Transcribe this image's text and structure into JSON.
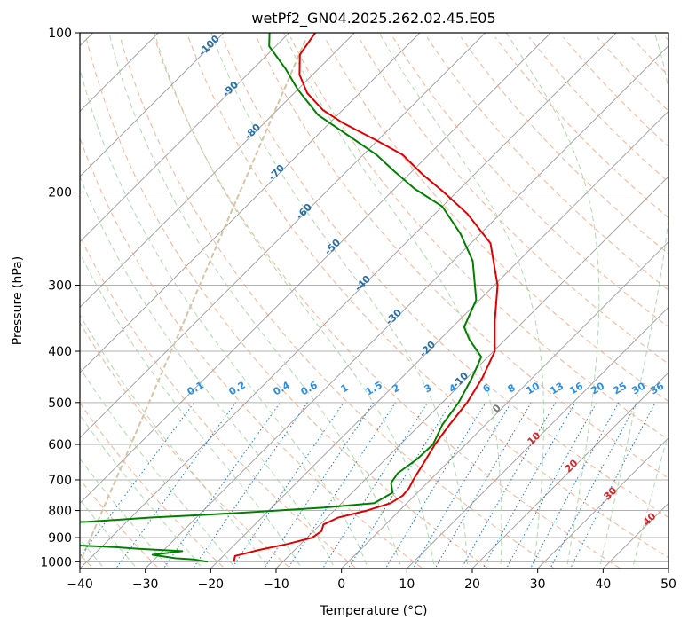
{
  "chart_data": {
    "type": "skew-t log-p",
    "title": "wetPf2_GN04.2025.262.02.45.E05",
    "xlabel": "Temperature (°C)",
    "ylabel": "Pressure (hPa)",
    "xlim": [
      -40,
      50
    ],
    "ylim_hpa": [
      1030,
      100
    ],
    "y_scale": "log",
    "grid": true,
    "x_ticks": [
      -40,
      -30,
      -20,
      -10,
      0,
      10,
      20,
      30,
      40,
      50
    ],
    "x_tick_labels": [
      "−40",
      "−30",
      "−20",
      "−10",
      "0",
      "10",
      "20",
      "30",
      "40",
      "50"
    ],
    "y_ticks": [
      100,
      200,
      300,
      400,
      500,
      600,
      700,
      800,
      900,
      1000
    ],
    "y_tick_labels": [
      "100",
      "200",
      "300",
      "400",
      "500",
      "600",
      "700",
      "800",
      "900",
      "1000"
    ],
    "colors": {
      "temperature": "#e00000",
      "dewpoint": "#008000",
      "isotherm": "#999999",
      "dry_adiabat": "#f4a582",
      "moist_adiabat": "#9fd49f",
      "mixing_ratio": "#1f77d4",
      "mixing_ratio_label": "#2b8fe8",
      "dry_adiabat_label": "#d62728",
      "moist_adiabat_label": "#2a6fa8",
      "ice_curve": "#d8c3a5"
    },
    "series": [
      {
        "key": "temperature",
        "points": [
          [
            -17.5,
            1000
          ],
          [
            -18.2,
            975
          ],
          [
            -15.5,
            950
          ],
          [
            -12,
            925
          ],
          [
            -9.2,
            900
          ],
          [
            -8.8,
            875
          ],
          [
            -9.5,
            850
          ],
          [
            -8.3,
            825
          ],
          [
            -5,
            800
          ],
          [
            -2.5,
            775
          ],
          [
            -1.8,
            750
          ],
          [
            -2,
            725
          ],
          [
            -2.6,
            700
          ],
          [
            -3.6,
            650
          ],
          [
            -4.7,
            600
          ],
          [
            -5.5,
            550
          ],
          [
            -6.2,
            500
          ],
          [
            -7.6,
            450
          ],
          [
            -9.8,
            400
          ],
          [
            -14.5,
            350
          ],
          [
            -19.5,
            300
          ],
          [
            -27,
            250
          ],
          [
            -35,
            220
          ],
          [
            -42,
            200
          ],
          [
            -48,
            185
          ],
          [
            -54,
            170
          ],
          [
            -60,
            160
          ],
          [
            -68,
            148
          ],
          [
            -73,
            140
          ],
          [
            -78,
            130
          ],
          [
            -82,
            120
          ],
          [
            -85,
            110
          ],
          [
            -86,
            100
          ]
        ]
      },
      {
        "key": "dewpoint",
        "points": [
          [
            -21.5,
            1000
          ],
          [
            -24,
            990
          ],
          [
            -27,
            985
          ],
          [
            -31,
            970
          ],
          [
            -27,
            955
          ],
          [
            -34,
            945
          ],
          [
            -38,
            938
          ],
          [
            -45,
            930
          ],
          [
            -55,
            915
          ],
          [
            -57,
            895
          ],
          [
            -62,
            880
          ],
          [
            -65,
            865
          ],
          [
            -56,
            850
          ],
          [
            -46,
            840
          ],
          [
            -37,
            825
          ],
          [
            -29,
            815
          ],
          [
            -22,
            805
          ],
          [
            -12,
            790
          ],
          [
            -5,
            775
          ],
          [
            -3.8,
            740
          ],
          [
            -5.5,
            710
          ],
          [
            -6,
            680
          ],
          [
            -5.2,
            640
          ],
          [
            -5,
            600
          ],
          [
            -6.6,
            550
          ],
          [
            -7.5,
            500
          ],
          [
            -9.2,
            450
          ],
          [
            -11,
            410
          ],
          [
            -15.5,
            380
          ],
          [
            -18.2,
            360
          ],
          [
            -20.5,
            320
          ],
          [
            -27,
            270
          ],
          [
            -33,
            240
          ],
          [
            -40,
            213
          ],
          [
            -47,
            197
          ],
          [
            -53,
            182
          ],
          [
            -58,
            170
          ],
          [
            -66,
            155
          ],
          [
            -73,
            143
          ],
          [
            -80,
            128
          ],
          [
            -85,
            117
          ],
          [
            -91,
            106
          ],
          [
            -93,
            100
          ]
        ]
      }
    ],
    "dry_adiabat_labels": [
      "0",
      "10",
      "20",
      "30",
      "40"
    ],
    "moist_adiabat_labels": [
      "-100",
      "-90",
      "-80",
      "-70",
      "-60",
      "-50",
      "-40",
      "-30",
      "-20",
      "-10",
      "0"
    ],
    "mixing_ratio_labels": [
      "0.1",
      "0.2",
      "0.4",
      "0.6",
      "1",
      "1.5",
      "2",
      "3",
      "4",
      "6",
      "8",
      "10",
      "13",
      "16",
      "20",
      "25",
      "30",
      "36"
    ],
    "mixing_ratio_values": [
      0.1,
      0.2,
      0.4,
      0.6,
      1,
      1.5,
      2,
      3,
      4,
      6,
      8,
      10,
      13,
      16,
      20,
      25,
      30,
      36
    ]
  }
}
